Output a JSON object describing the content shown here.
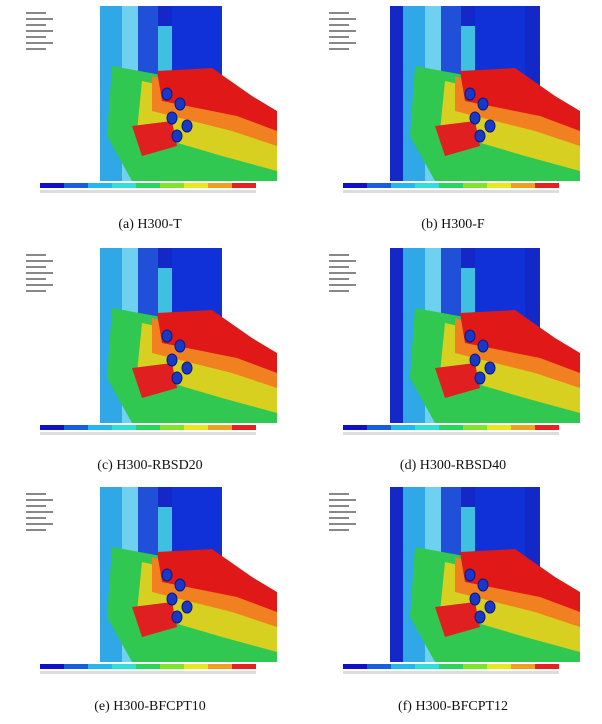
{
  "figure": {
    "panels": [
      {
        "caption": "(a) H300-T"
      },
      {
        "caption": "(b) H300-F"
      },
      {
        "caption": "(c) H300-RBSD20"
      },
      {
        "caption": "(d) H300-RBSD40"
      },
      {
        "caption": "(e) H300-BFCPT10"
      },
      {
        "caption": "(f) H300-BFCPT12"
      }
    ]
  }
}
